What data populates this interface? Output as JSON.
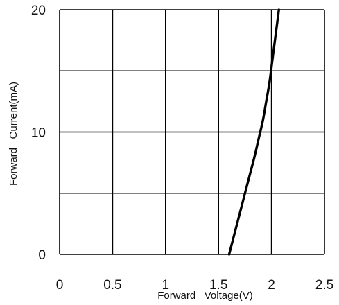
{
  "chart_data": {
    "type": "line",
    "title": "",
    "xlabel": "Forward   Voltage(V)",
    "ylabel": "Forward   Current(mA)",
    "xlim": [
      0,
      2.5
    ],
    "ylim": [
      0,
      20
    ],
    "x_ticks": [
      "0",
      "0.5",
      "1",
      "1.5",
      "2",
      "2.5"
    ],
    "y_ticks": [
      "0",
      "10",
      "20"
    ],
    "grid": true,
    "legend": "none",
    "series": [
      {
        "x": [
          1.6,
          1.66,
          1.72,
          1.78,
          1.84,
          1.88,
          1.92,
          1.95,
          1.98,
          2.01,
          2.04,
          2.07
        ],
        "y": [
          0,
          2,
          4,
          6,
          8,
          9.5,
          11,
          12.5,
          14,
          16,
          18,
          20
        ]
      }
    ],
    "colors": {
      "line": "#000000",
      "grid": "#000000"
    }
  }
}
